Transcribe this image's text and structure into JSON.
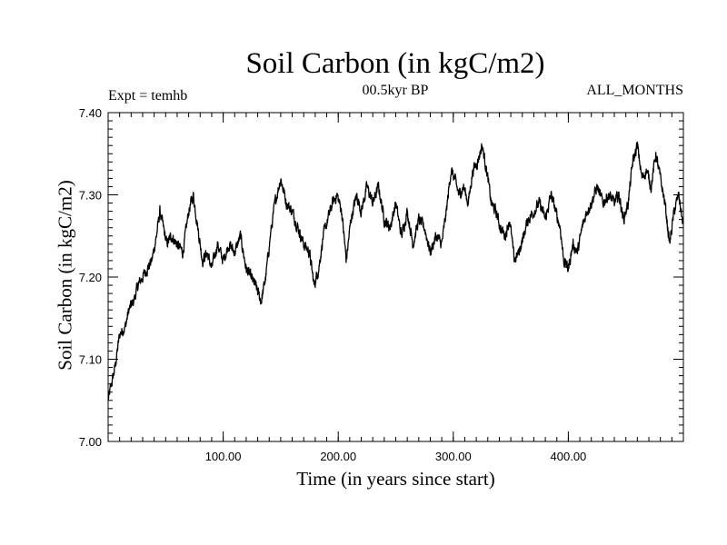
{
  "chart_data": {
    "type": "line",
    "title": "Soil Carbon (in kgC/m2)",
    "subtitle": "00.5kyr BP",
    "left_label": "Expt = temhb",
    "right_label": "ALL_MONTHS",
    "xlabel": "Time (in years since start)",
    "ylabel": "Soil Carbon (in kgC/m2)",
    "xlim": [
      0,
      500
    ],
    "ylim": [
      7.0,
      7.4
    ],
    "xticks": [
      100,
      200,
      300,
      400
    ],
    "xtick_labels": [
      "100.00",
      "200.00",
      "300.00",
      "400.00"
    ],
    "yticks": [
      7.0,
      7.1,
      7.2,
      7.3,
      7.4
    ],
    "ytick_labels": [
      "7.00",
      "7.10",
      "7.20",
      "7.30",
      "7.40"
    ],
    "series": [
      {
        "name": "Soil Carbon",
        "color": "#000000",
        "x": [
          0,
          3,
          6,
          10,
          15,
          18,
          22,
          26,
          30,
          34,
          38,
          42,
          45,
          48,
          51,
          55,
          60,
          65,
          70,
          74,
          78,
          82,
          86,
          90,
          95,
          100,
          105,
          110,
          115,
          120,
          124,
          128,
          133,
          137,
          141,
          145,
          150,
          155,
          160,
          165,
          170,
          175,
          179,
          183,
          187,
          191,
          195,
          199,
          203,
          207,
          211,
          216,
          220,
          225,
          230,
          235,
          240,
          245,
          250,
          255,
          260,
          265,
          270,
          275,
          280,
          285,
          290,
          294,
          298,
          301,
          305,
          309,
          313,
          317,
          321,
          325,
          329,
          333,
          337,
          341,
          345,
          349,
          353,
          357,
          361,
          365,
          370,
          375,
          380,
          385,
          389,
          393,
          396,
          400,
          404,
          408,
          412,
          416,
          420,
          425,
          430,
          435,
          440,
          444,
          448,
          452,
          456,
          460,
          464,
          468,
          472,
          476,
          480,
          484,
          488,
          492,
          496,
          500
        ],
        "y": [
          7.05,
          7.07,
          7.09,
          7.13,
          7.14,
          7.16,
          7.17,
          7.19,
          7.2,
          7.21,
          7.22,
          7.25,
          7.28,
          7.26,
          7.24,
          7.25,
          7.24,
          7.23,
          7.28,
          7.3,
          7.26,
          7.22,
          7.23,
          7.21,
          7.24,
          7.22,
          7.24,
          7.23,
          7.25,
          7.21,
          7.2,
          7.19,
          7.17,
          7.2,
          7.25,
          7.29,
          7.32,
          7.29,
          7.28,
          7.26,
          7.24,
          7.23,
          7.19,
          7.21,
          7.25,
          7.27,
          7.29,
          7.3,
          7.28,
          7.22,
          7.27,
          7.3,
          7.28,
          7.31,
          7.29,
          7.31,
          7.27,
          7.26,
          7.29,
          7.25,
          7.28,
          7.24,
          7.27,
          7.26,
          7.23,
          7.25,
          7.24,
          7.28,
          7.33,
          7.32,
          7.3,
          7.31,
          7.29,
          7.33,
          7.34,
          7.36,
          7.33,
          7.29,
          7.28,
          7.26,
          7.25,
          7.27,
          7.22,
          7.23,
          7.25,
          7.27,
          7.28,
          7.29,
          7.27,
          7.3,
          7.28,
          7.26,
          7.22,
          7.21,
          7.24,
          7.23,
          7.26,
          7.28,
          7.29,
          7.31,
          7.29,
          7.3,
          7.29,
          7.3,
          7.27,
          7.29,
          7.34,
          7.36,
          7.32,
          7.33,
          7.31,
          7.35,
          7.32,
          7.29,
          7.24,
          7.28,
          7.3,
          7.26
        ]
      }
    ]
  }
}
